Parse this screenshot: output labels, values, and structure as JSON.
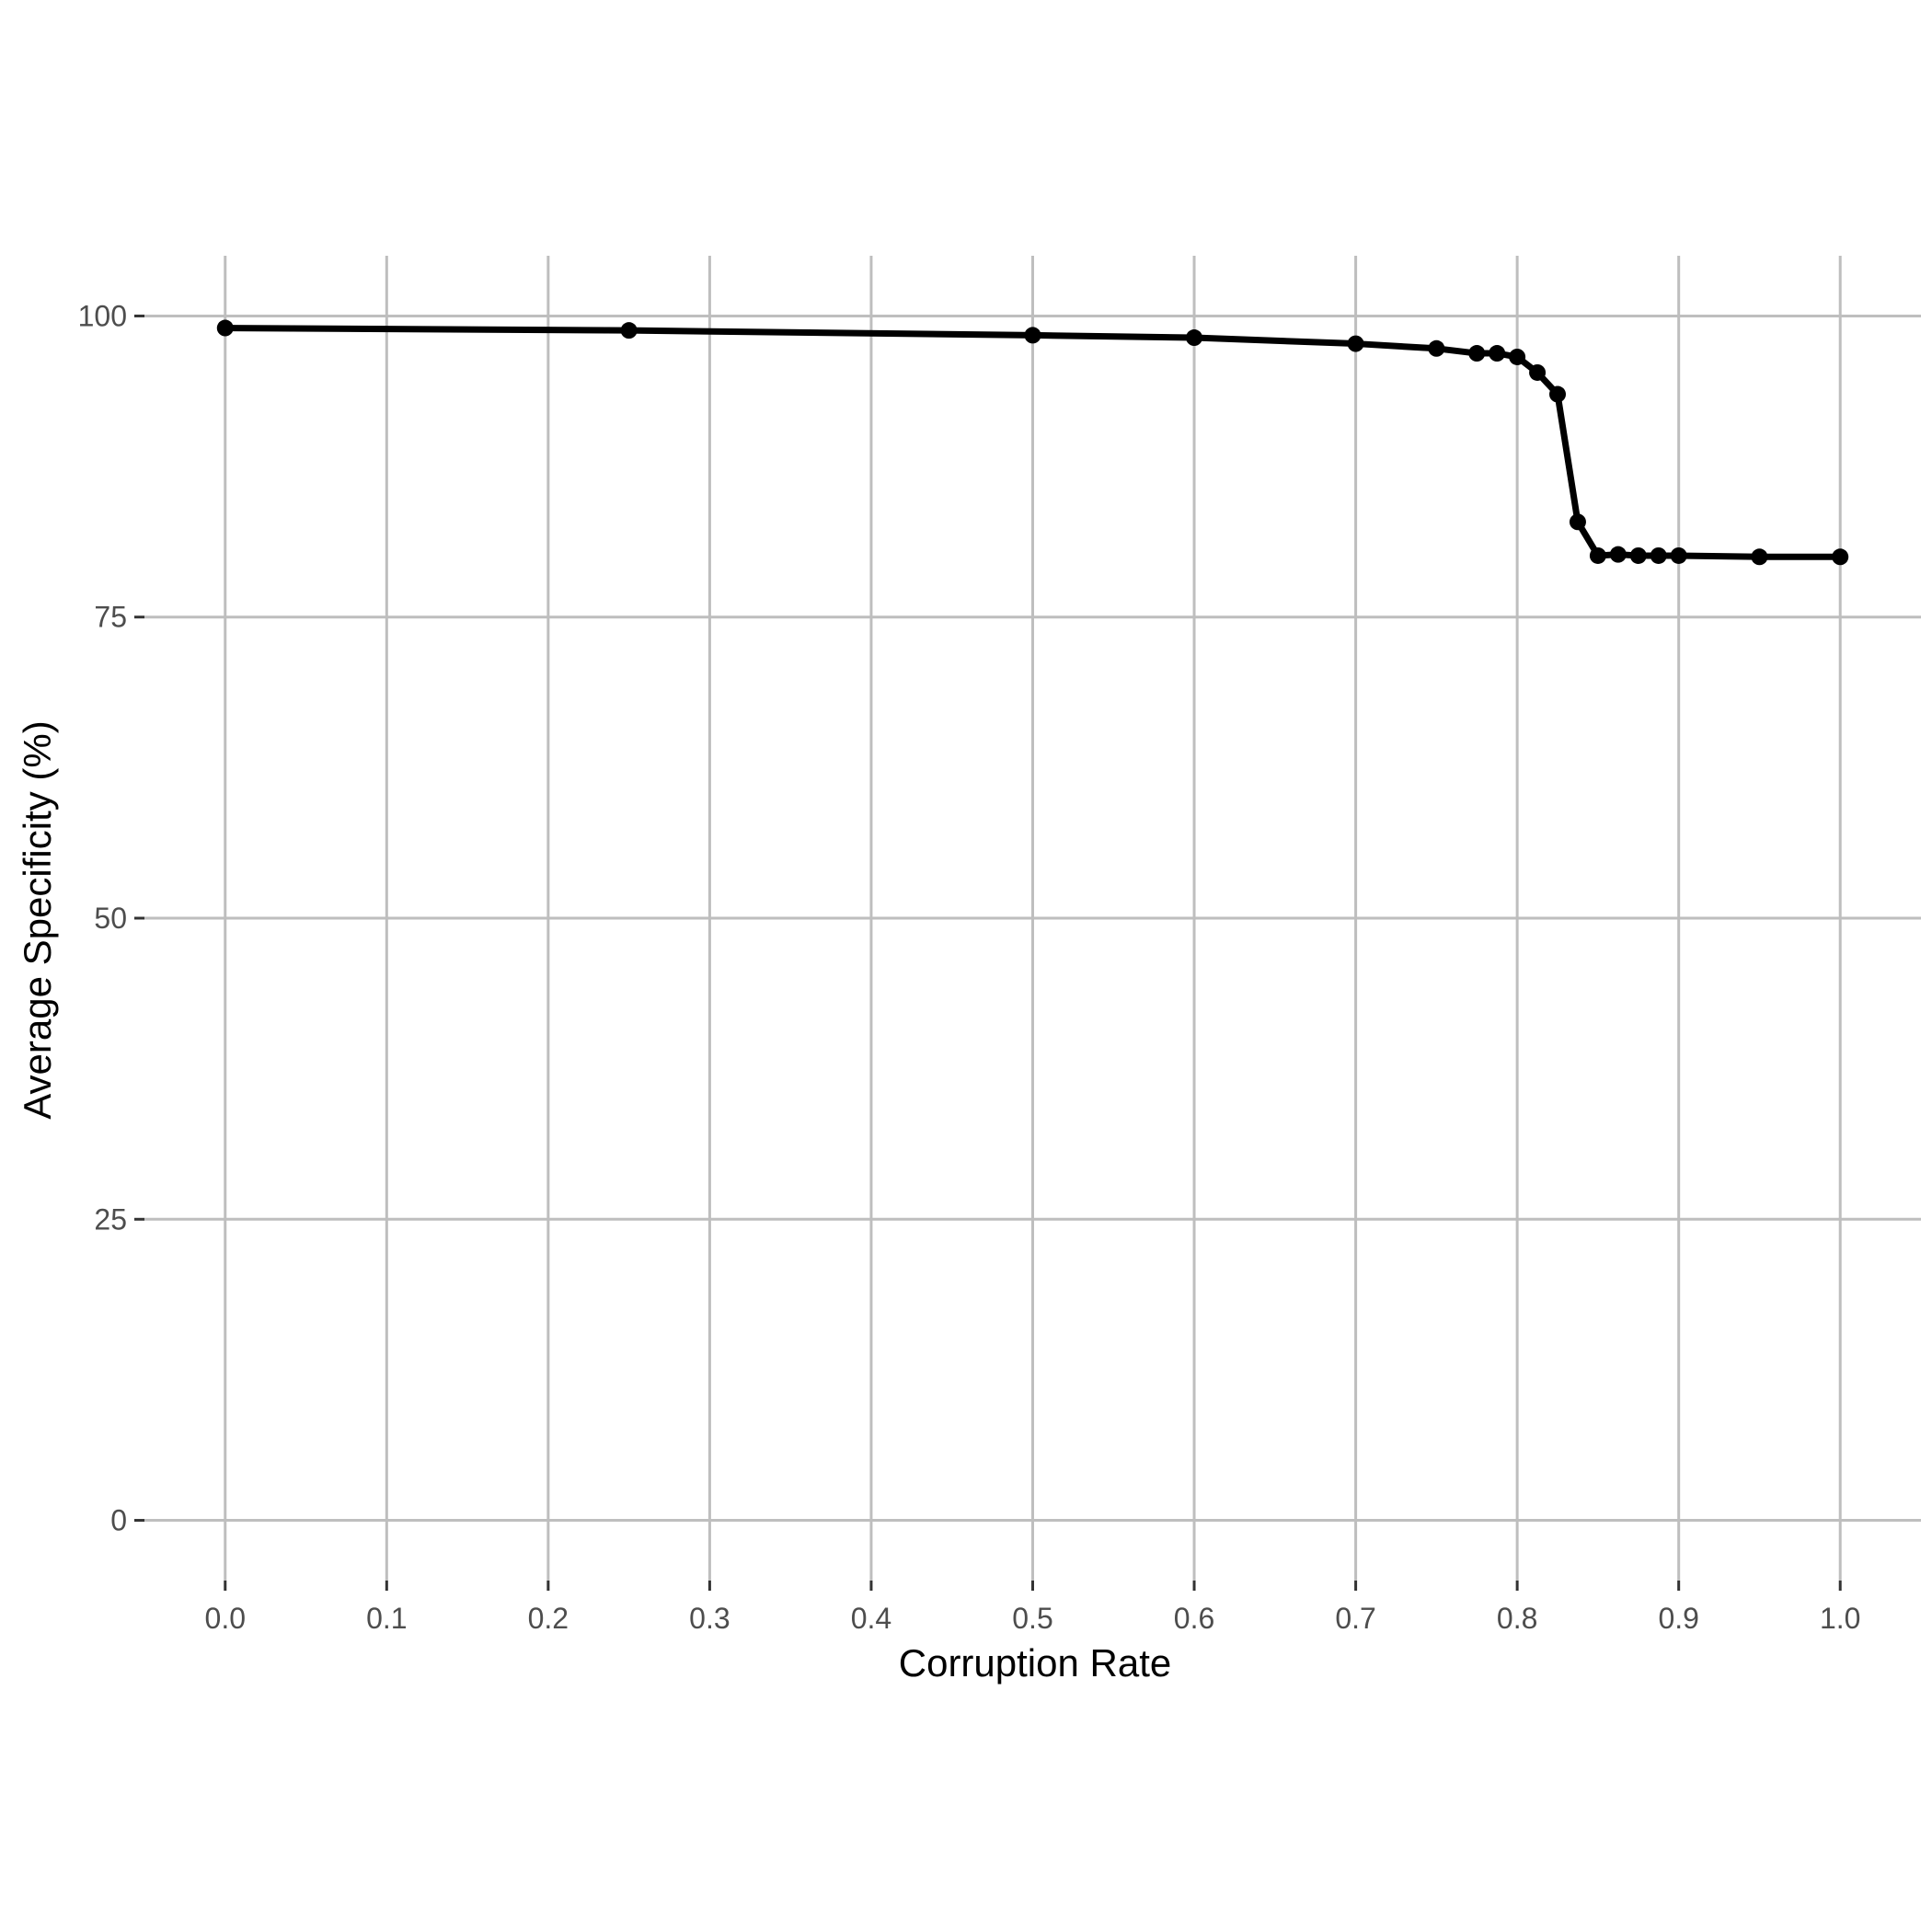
{
  "chart_data": {
    "type": "line",
    "title": "",
    "xlabel": "Corruption Rate",
    "ylabel": "Average Specificity (%)",
    "xlim": [
      -0.05,
      1.05
    ],
    "ylim": [
      -5,
      105
    ],
    "x_ticks": [
      0.0,
      0.1,
      0.2,
      0.3,
      0.4,
      0.5,
      0.6,
      0.7,
      0.8,
      0.9,
      1.0
    ],
    "x_tick_labels": [
      "0.0",
      "0.1",
      "0.2",
      "0.3",
      "0.4",
      "0.5",
      "0.6",
      "0.7",
      "0.8",
      "0.9",
      "1.0"
    ],
    "y_ticks": [
      0,
      25,
      50,
      75,
      100
    ],
    "y_tick_labels": [
      "0",
      "25",
      "50",
      "75",
      "100"
    ],
    "grid": true,
    "legend": "none",
    "series": [
      {
        "color": "#000000",
        "x": [
          0.0,
          0.25,
          0.5,
          0.6,
          0.7,
          0.75,
          0.775,
          0.7875,
          0.8,
          0.8125,
          0.825,
          0.8375,
          0.85,
          0.8625,
          0.875,
          0.8875,
          0.9,
          0.95,
          1.0
        ],
        "y": [
          99.0,
          98.8,
          98.4,
          98.2,
          97.7,
          97.3,
          96.9,
          96.9,
          96.6,
          95.3,
          93.5,
          82.9,
          80.1,
          80.2,
          80.1,
          80.1,
          80.1,
          80.0,
          80.0
        ]
      }
    ],
    "gridline_color": "#bebebe",
    "axis_tick_color": "#333333"
  }
}
